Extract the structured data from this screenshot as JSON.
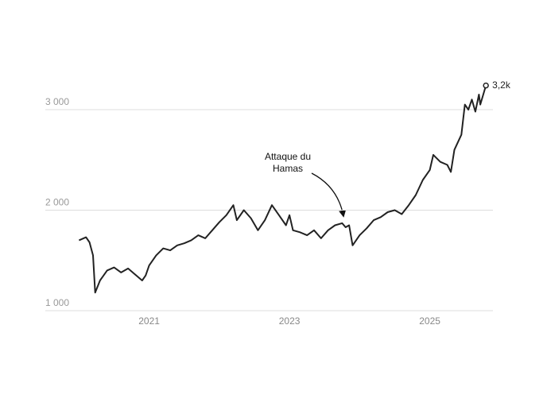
{
  "chart_data": {
    "type": "line",
    "annotation": "Attaque du Hamas",
    "x": [
      2020.0,
      2020.1,
      2020.15,
      2020.2,
      2020.23,
      2020.3,
      2020.4,
      2020.5,
      2020.6,
      2020.7,
      2020.8,
      2020.9,
      2020.95,
      2021.0,
      2021.1,
      2021.2,
      2021.3,
      2021.4,
      2021.5,
      2021.6,
      2021.7,
      2021.8,
      2021.9,
      2022.0,
      2022.1,
      2022.2,
      2022.25,
      2022.35,
      2022.45,
      2022.55,
      2022.65,
      2022.75,
      2022.85,
      2022.95,
      2023.0,
      2023.05,
      2023.15,
      2023.25,
      2023.35,
      2023.45,
      2023.55,
      2023.65,
      2023.75,
      2023.8,
      2023.85,
      2023.9,
      2024.0,
      2024.1,
      2024.2,
      2024.3,
      2024.4,
      2024.5,
      2024.6,
      2024.7,
      2024.8,
      2024.9,
      2025.0,
      2025.05,
      2025.15,
      2025.25,
      2025.3,
      2025.35,
      2025.45,
      2025.5,
      2025.55,
      2025.6,
      2025.65,
      2025.7,
      2025.72,
      2025.8
    ],
    "series": [
      {
        "color": "#222222",
        "values": [
          1700,
          1730,
          1680,
          1550,
          1180,
          1300,
          1400,
          1430,
          1380,
          1420,
          1360,
          1300,
          1350,
          1450,
          1550,
          1620,
          1600,
          1650,
          1670,
          1700,
          1750,
          1720,
          1800,
          1880,
          1950,
          2050,
          1900,
          2000,
          1920,
          1800,
          1900,
          2050,
          1950,
          1850,
          1950,
          1800,
          1780,
          1750,
          1800,
          1720,
          1800,
          1850,
          1870,
          1830,
          1850,
          1650,
          1750,
          1820,
          1900,
          1930,
          1980,
          2000,
          1960,
          2050,
          2150,
          2300,
          2400,
          2550,
          2480,
          2450,
          2380,
          2600,
          2750,
          3050,
          3000,
          3100,
          2980,
          3150,
          3050,
          3240
        ],
        "value_labels": [
          null,
          null,
          null,
          null,
          null,
          null,
          null,
          null,
          null,
          null,
          null,
          null,
          null,
          null,
          null,
          null,
          null,
          null,
          null,
          null,
          null,
          null,
          null,
          null,
          null,
          null,
          null,
          null,
          null,
          null,
          null,
          null,
          null,
          null,
          null,
          null,
          null,
          null,
          null,
          null,
          null,
          null,
          null,
          null,
          null,
          null,
          null,
          null,
          null,
          null,
          null,
          null,
          null,
          null,
          null,
          null,
          null,
          null,
          null,
          null,
          null,
          null,
          null,
          null,
          null,
          null,
          null,
          null,
          null,
          "3,2k"
        ]
      }
    ],
    "xlim": [
      2019.52,
      2025.9
    ],
    "xticks": [
      2021,
      2023,
      2025
    ],
    "ylim": [
      1000,
      3300
    ],
    "yticks": [
      {
        "value": 1000,
        "label": "1 000"
      },
      {
        "value": 2000,
        "label": "2 000"
      },
      {
        "value": 3000,
        "label": "3 000"
      }
    ],
    "grid": true
  }
}
